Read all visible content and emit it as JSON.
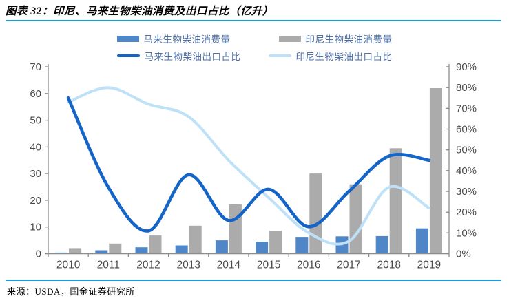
{
  "header": {
    "title": "图表 32：印尼、马来生物柴油消费及出口占比（亿升）"
  },
  "footer": {
    "source": "来源：USDA，国金证券研究所"
  },
  "legend": {
    "items": [
      {
        "label": "马来生物柴油消费量",
        "type": "bar",
        "color": "#4F86C8"
      },
      {
        "label": "印尼生物柴油消费量",
        "type": "bar",
        "color": "#ABABAB"
      },
      {
        "label": "马来生物柴油出口占比",
        "type": "line",
        "color": "#1565C8"
      },
      {
        "label": "印尼生物柴油出口占比",
        "type": "line",
        "color": "#BEE1F8"
      }
    ]
  },
  "chart_data": {
    "type": "bar",
    "subtype": "bar+line combo, dual axis",
    "title": "图表 32：印尼、马来生物柴油消费及出口占比（亿升）",
    "categories": [
      "2010",
      "2011",
      "2012",
      "2013",
      "2014",
      "2015",
      "2016",
      "2017",
      "2018",
      "2019"
    ],
    "series": [
      {
        "name": "马来生物柴油消费量",
        "type": "bar",
        "axis": "left",
        "color": "#4F86C8",
        "values": [
          0.4,
          1.3,
          2.4,
          3.1,
          5.0,
          4.5,
          6.3,
          6.5,
          6.6,
          9.5
        ]
      },
      {
        "name": "印尼生物柴油消费量",
        "type": "bar",
        "axis": "left",
        "color": "#ABABAB",
        "values": [
          2.1,
          3.8,
          6.8,
          10.5,
          18.5,
          8.6,
          30,
          26,
          39.5,
          62
        ]
      },
      {
        "name": "马来生物柴油出口占比",
        "type": "line",
        "axis": "right",
        "color": "#1565C8",
        "values": [
          75,
          32,
          11,
          38,
          16,
          31,
          13,
          30,
          47,
          45
        ]
      },
      {
        "name": "印尼生物柴油出口占比",
        "type": "line",
        "axis": "right",
        "color": "#BEE1F8",
        "values": [
          73,
          80,
          72,
          66,
          45,
          27,
          10,
          6,
          32,
          22
        ]
      }
    ],
    "left_axis": {
      "min": 0,
      "max": 70,
      "step": 10,
      "tick_labels": [
        "0",
        "10",
        "20",
        "30",
        "40",
        "50",
        "60",
        "70"
      ]
    },
    "right_axis": {
      "min": 0,
      "max": 90,
      "step": 10,
      "unit": "%",
      "tick_labels": [
        "0%",
        "10%",
        "20%",
        "30%",
        "40%",
        "50%",
        "60%",
        "70%",
        "80%",
        "90%"
      ]
    },
    "xlabel": "",
    "ylabel": "",
    "grid": false,
    "legend_position": "top"
  },
  "colors": {
    "accent_rule": "#1B9CD8",
    "axis_line": "#8C8C8C",
    "axis_text": "#4A4A4A",
    "legend_text": "#4C6FA6"
  }
}
